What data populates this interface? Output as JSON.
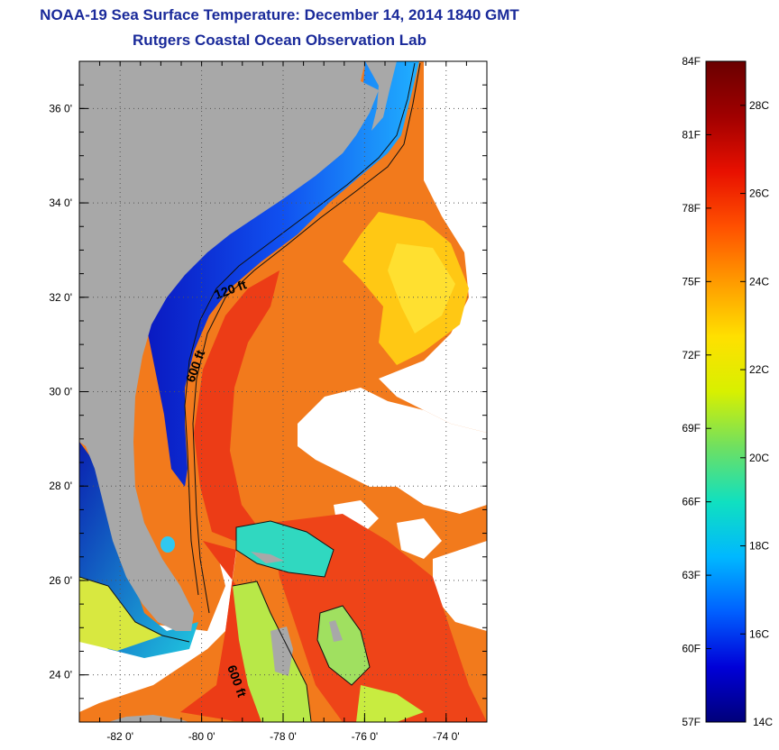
{
  "title_line1": "NOAA-19 Sea Surface Temperature:  December 14, 2014 1840 GMT",
  "title_line2": "Rutgers Coastal Ocean Observation Lab",
  "map": {
    "x_ticks": [
      "-82 0'",
      "-80 0'",
      "-78 0'",
      "-76 0'",
      "-74 0'"
    ],
    "x_tick_values": [
      -82,
      -80,
      -78,
      -76,
      -74
    ],
    "y_ticks": [
      "36 0'",
      "34 0'",
      "32 0'",
      "30 0'",
      "28 0'",
      "26 0'",
      "24 0'"
    ],
    "y_tick_values": [
      36,
      34,
      32,
      30,
      28,
      26,
      24
    ],
    "lon_range": [
      -83.0,
      -73.0
    ],
    "lat_range": [
      23.0,
      37.0
    ],
    "grid": "dotted",
    "contour_labels": [
      "120 ft",
      "600 ft",
      "600 ft"
    ],
    "colors": {
      "land": "#a8a8a8",
      "cloud": "#ffffff",
      "cold_water": "#1030c8",
      "warm_water": "#f06a1a",
      "gulf_stream": "#ee3a14"
    }
  },
  "colorbar": {
    "f_labels": [
      "84F",
      "81F",
      "78F",
      "75F",
      "72F",
      "69F",
      "66F",
      "63F",
      "60F",
      "57F"
    ],
    "c_labels": [
      "28C",
      "26C",
      "24C",
      "22C",
      "20C",
      "18C",
      "16C",
      "14C"
    ],
    "range_c": [
      14,
      29
    ],
    "colors": [
      "#00007a",
      "#0000d8",
      "#0060ff",
      "#00b8ff",
      "#10e0c0",
      "#70e060",
      "#d8f000",
      "#ffe000",
      "#ff9a00",
      "#ff5000",
      "#e81000",
      "#a00000",
      "#6a0000"
    ]
  }
}
